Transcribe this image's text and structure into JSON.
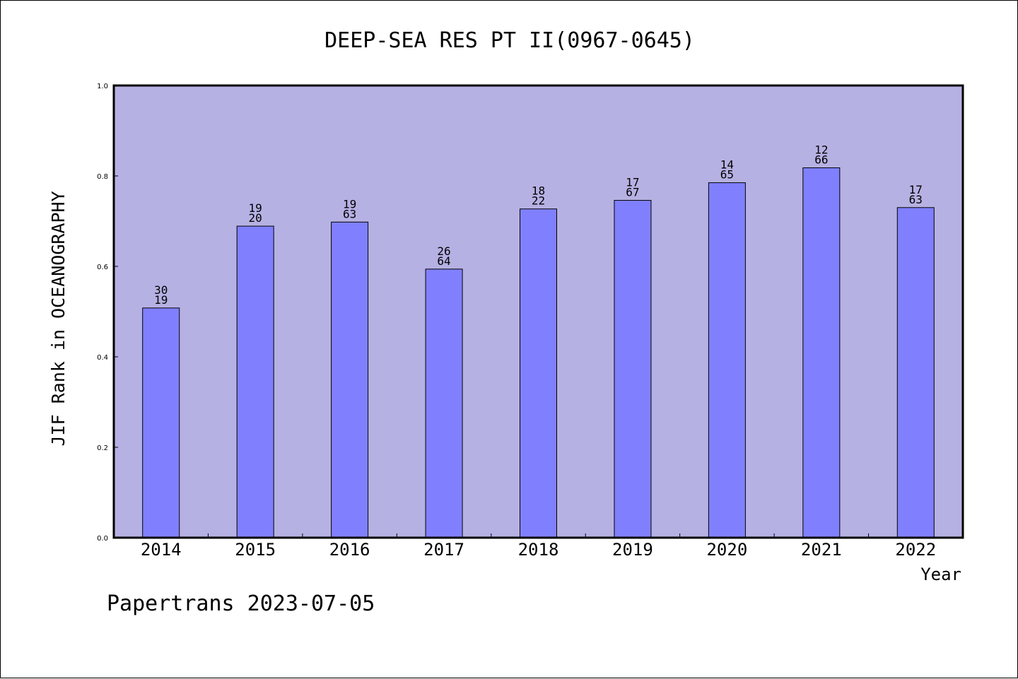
{
  "chart_data": {
    "type": "bar",
    "title": "DEEP-SEA RES PT II(0967-0645)",
    "ylabel": "JIF Rank in OCEANOGRAPHY",
    "xlabel": "Year",
    "categories": [
      "2014",
      "2015",
      "2016",
      "2017",
      "2018",
      "2019",
      "2020",
      "2021",
      "2022"
    ],
    "values": [
      0.508,
      0.689,
      0.698,
      0.594,
      0.727,
      0.746,
      0.785,
      0.818,
      0.73
    ],
    "bar_labels": [
      [
        "30",
        "19"
      ],
      [
        "19",
        "20"
      ],
      [
        "19",
        "63"
      ],
      [
        "26",
        "64"
      ],
      [
        "18",
        "22"
      ],
      [
        "17",
        "67"
      ],
      [
        "14",
        "65"
      ],
      [
        "12",
        "66"
      ],
      [
        "17",
        "63"
      ]
    ],
    "ylim": [
      0,
      1.0
    ],
    "yticks": [
      "0.0",
      "0.2",
      "0.4",
      "0.6",
      "0.8",
      "1.0"
    ],
    "ytick_values": [
      0,
      0.2,
      0.4,
      0.6,
      0.8,
      1.0
    ],
    "grid": false,
    "colors": {
      "plot_background": "#b6b1e3",
      "bar_fill": "#8080ff",
      "bar_stroke": "#000000"
    }
  },
  "footer": "Papertrans 2023-07-05"
}
